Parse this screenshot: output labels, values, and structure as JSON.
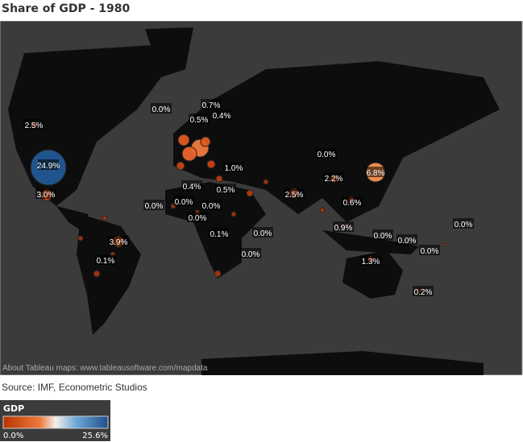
{
  "header": {
    "title": "Share of GDP - 1980"
  },
  "map": {
    "attribution": "About Tableau maps: www.tableausoftware.com/mapdata",
    "labels": [
      "24.9%",
      "2.5%",
      "3.0%",
      "0.0%",
      "0.7%",
      "0.5%",
      "0.4%",
      "1.0%",
      "0.0%",
      "2.2%",
      "6.8%",
      "2.5%",
      "0.6%",
      "0.4%",
      "0.5%",
      "0.0%",
      "0.0%",
      "0.0%",
      "0.0%",
      "0.1%",
      "0.0%",
      "0.0%",
      "3.9%",
      "0.1%",
      "0.9%",
      "0.0%",
      "0.0%",
      "0.0%",
      "0.0%",
      "1.3%",
      "0.2%"
    ]
  },
  "source": "Source: IMF, Econometric Studios",
  "legend": {
    "title": "GDP",
    "min_label": "0.0%",
    "max_label": "25.6%"
  }
}
